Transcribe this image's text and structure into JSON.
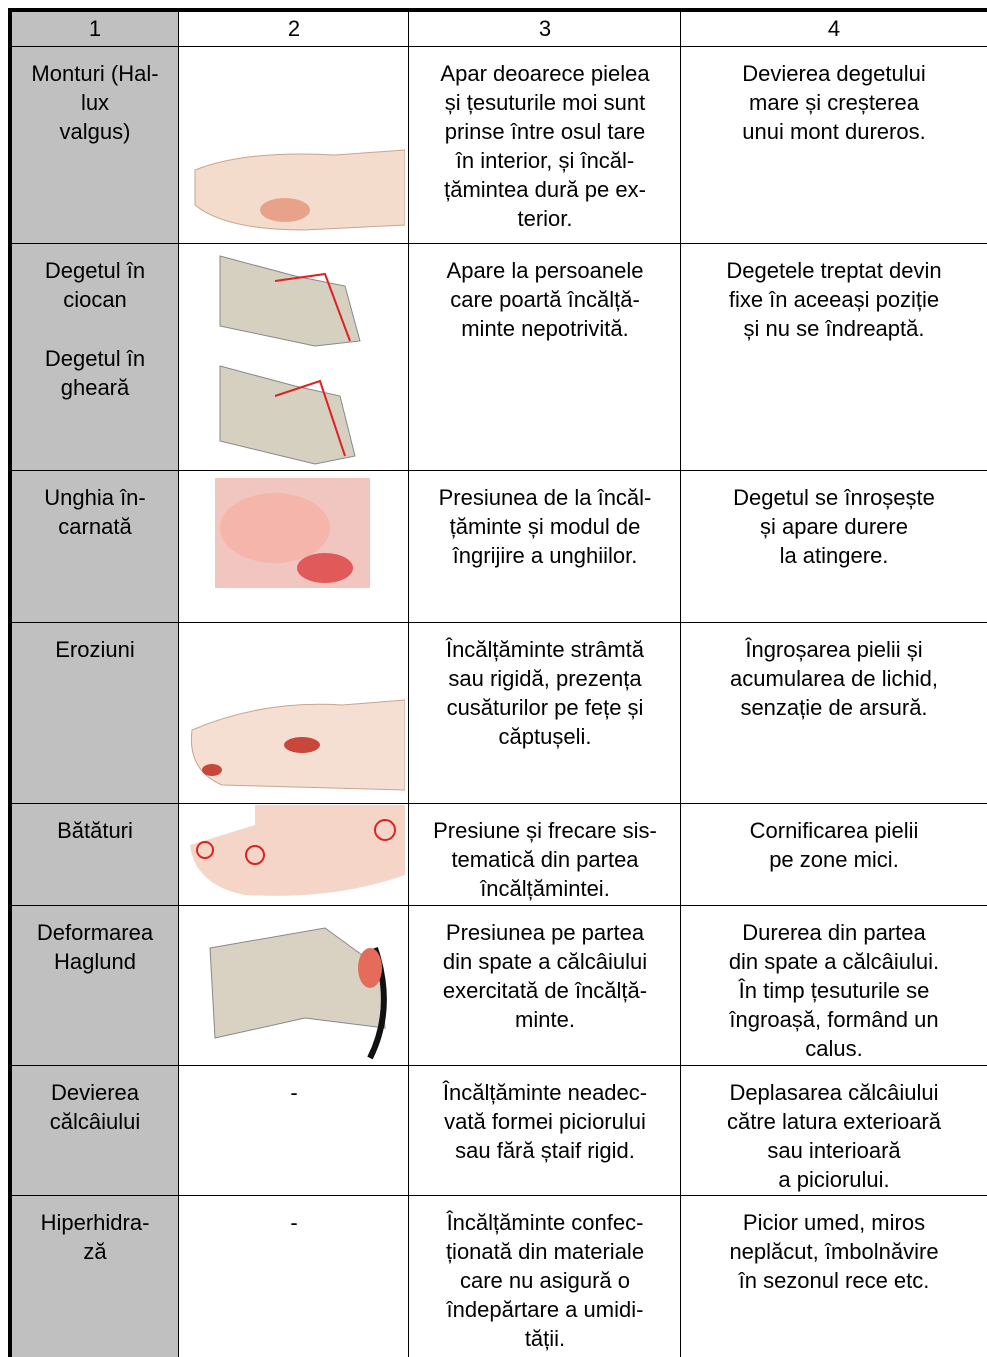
{
  "table": {
    "header": [
      "1",
      "2",
      "3",
      "4"
    ],
    "rows": [
      {
        "conditions": [
          "Monturi (Hal-\nlux\nvalgus)"
        ],
        "cause": "Apar deoarece pielea\nși țesuturile moi sunt\nprinse între osul tare\nîn interior, și încăl-\nțămintea dură pe ex-\nterior.",
        "symptom": "Devierea degetului\nmare și creșterea\nunui mont dureros."
      },
      {
        "conditions": [
          "Degetul în\nciocan",
          "Degetul în\ngheară"
        ],
        "cause": "Apare la persoanele\ncare poartă încălță-\nminte nepotrivită.",
        "symptom": "Degetele treptat devin\nfixe în aceeași poziție\nși nu se îndreaptă."
      },
      {
        "conditions": [
          "Unghia în-\ncarnată"
        ],
        "cause": "Presiunea de la încăl-\nțăminte și modul de\nîngrijire a unghiilor.",
        "symptom": "Degetul se înroșește\nși apare durere\nla atingere."
      },
      {
        "conditions": [
          "Eroziuni"
        ],
        "cause": "Încălțăminte strâmtă\nsau rigidă, prezența\ncusăturilor pe fețe și\ncăptușeli.",
        "symptom": "Îngroșarea pielii și\nacumularea de lichid,\nsenzație de arsură."
      },
      {
        "conditions": [
          "Bătături"
        ],
        "cause": "Presiune și frecare sis-\ntematică din partea\nîncălțămintei.",
        "symptom": "Cornificarea pielii\npe zone mici."
      },
      {
        "conditions": [
          "Deformarea\nHaglund"
        ],
        "cause": "Presiunea pe partea\ndin spate a călcâiului\nexercitată de încălță-\nminte.",
        "symptom": "Durerea din partea\ndin spate a călcâiului.\nÎn timp țesuturile se\nîngroașă, formând un\ncalus."
      },
      {
        "conditions": [
          "Devierea\ncălcâiului"
        ],
        "illustration": "-",
        "cause": "Încălțăminte neadec-\nvată formei piciorului\nsau fără ștaif rigid.",
        "symptom": "Deplasarea călcâiului\ncătre latura exterioară\nsau interioară\na piciorului."
      },
      {
        "conditions": [
          "Hiperhidra-\nză"
        ],
        "illustration": "-",
        "cause": "Încălțăminte confec-\nționată din materiale\ncare nu asigură o\nîndepărtare a umidi-\ntății.",
        "symptom": "Picior umed, miros\nneplăcut, îmbolnăvire\nîn sezonul rece etc."
      }
    ]
  }
}
